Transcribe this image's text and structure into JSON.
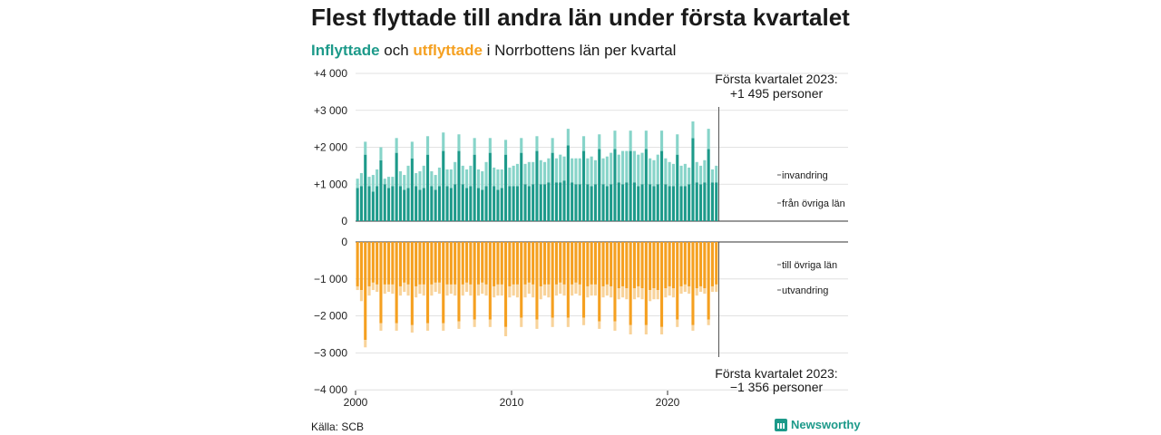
{
  "title": "Flest flyttade till andra län under första kvartalet",
  "subtitle": {
    "part1": "Inflyttade",
    "part2": " och ",
    "part3": "utflyttade",
    "part4": " i Norrbottens län per kvartal"
  },
  "source": "Källa: SCB",
  "brand": "Newsworthy",
  "colors": {
    "in_lan": "#1d9a8a",
    "in_inv": "#87d4c9",
    "out_lan": "#f5a020",
    "out_utv": "#f8d39a",
    "grid": "#d9d9d9",
    "axis": "#333333"
  },
  "chart_data": {
    "type": "bar",
    "stacked": true,
    "x": {
      "start": 2000,
      "period": "quarter",
      "n": 93,
      "ticks": [
        2000,
        2010,
        2020
      ],
      "tick_labels": [
        "2000",
        "2010",
        "2020"
      ]
    },
    "top_panel": {
      "ylim": [
        0,
        4000
      ],
      "ticks": [
        0,
        1000,
        2000,
        3000,
        4000
      ],
      "tick_labels": [
        "0",
        "+1 000",
        "+2 000",
        "+3 000",
        "+4 000"
      ],
      "series": [
        {
          "name": "från övriga län",
          "values": [
            900,
            950,
            1800,
            950,
            800,
            950,
            1650,
            1000,
            900,
            950,
            1850,
            950,
            850,
            900,
            1700,
            950,
            850,
            900,
            1800,
            950,
            850,
            950,
            1900,
            950,
            900,
            1000,
            1900,
            1000,
            900,
            950,
            1800,
            900,
            850,
            950,
            1850,
            950,
            850,
            900,
            1800,
            950,
            950,
            950,
            1850,
            1000,
            950,
            1000,
            1900,
            1000,
            1000,
            1050,
            1850,
            1050,
            1050,
            1100,
            2050,
            1050,
            1000,
            1000,
            1900,
            1000,
            950,
            1000,
            1950,
            1000,
            950,
            1000,
            1950,
            1050,
            1000,
            1050,
            1900,
            1050,
            950,
            1000,
            1950,
            1000,
            950,
            1000,
            1900,
            1000,
            950,
            950,
            1800,
            950,
            950,
            1000,
            2250,
            1050,
            1000,
            1050,
            1950,
            1050,
            1050
          ]
        },
        {
          "name": "invandring",
          "values": [
            250,
            350,
            350,
            250,
            450,
            450,
            350,
            150,
            300,
            250,
            400,
            400,
            400,
            600,
            450,
            350,
            500,
            600,
            500,
            400,
            400,
            500,
            500,
            450,
            500,
            600,
            450,
            500,
            500,
            550,
            450,
            500,
            500,
            650,
            400,
            500,
            550,
            500,
            400,
            500,
            550,
            600,
            400,
            550,
            650,
            600,
            400,
            650,
            600,
            650,
            400,
            650,
            750,
            650,
            450,
            650,
            700,
            700,
            400,
            700,
            800,
            650,
            400,
            700,
            800,
            850,
            500,
            750,
            900,
            850,
            550,
            850,
            850,
            850,
            500,
            700,
            700,
            800,
            550,
            700,
            650,
            600,
            550,
            550,
            600,
            450,
            450,
            550,
            500,
            600,
            550,
            350,
            450
          ]
        }
      ]
    },
    "bottom_panel": {
      "ylim": [
        -4000,
        0
      ],
      "ticks": [
        0,
        -1000,
        -2000,
        -3000,
        -4000
      ],
      "tick_labels": [
        "0",
        "−1 000",
        "−2 000",
        "−3 000",
        "−4 000"
      ],
      "series": [
        {
          "name": "till övriga län",
          "values": [
            -1200,
            -1300,
            -2650,
            -1200,
            -1100,
            -1150,
            -2200,
            -1150,
            -1150,
            -1150,
            -2200,
            -1200,
            -1100,
            -1150,
            -2250,
            -1200,
            -1150,
            -1150,
            -2200,
            -1150,
            -1100,
            -1100,
            -2200,
            -1150,
            -1150,
            -1150,
            -2150,
            -1150,
            -1100,
            -1150,
            -2100,
            -1150,
            -1100,
            -1150,
            -2100,
            -1200,
            -1150,
            -1150,
            -2300,
            -1200,
            -1150,
            -1150,
            -2050,
            -1150,
            -1100,
            -1150,
            -2100,
            -1200,
            -1150,
            -1150,
            -2050,
            -1150,
            -1100,
            -1150,
            -2050,
            -1150,
            -1100,
            -1150,
            -2050,
            -1200,
            -1150,
            -1150,
            -2150,
            -1200,
            -1150,
            -1200,
            -2150,
            -1250,
            -1200,
            -1250,
            -2250,
            -1250,
            -1200,
            -1250,
            -2250,
            -1300,
            -1250,
            -1300,
            -2300,
            -1250,
            -1200,
            -1250,
            -2100,
            -1200,
            -1150,
            -1200,
            -2250,
            -1250,
            -1200,
            -1250,
            -2100,
            -1200,
            -1150
          ]
        },
        {
          "name": "utvandring",
          "values": [
            -100,
            -300,
            -200,
            -250,
            -200,
            -200,
            -200,
            -250,
            -200,
            -250,
            -200,
            -250,
            -250,
            -300,
            -200,
            -300,
            -250,
            -300,
            -200,
            -300,
            -250,
            -300,
            -200,
            -300,
            -250,
            -300,
            -200,
            -300,
            -250,
            -300,
            -200,
            -300,
            -300,
            -300,
            -200,
            -300,
            -300,
            -300,
            -250,
            -300,
            -300,
            -350,
            -250,
            -350,
            -300,
            -350,
            -250,
            -350,
            -300,
            -350,
            -250,
            -300,
            -300,
            -300,
            -250,
            -300,
            -300,
            -300,
            -200,
            -300,
            -300,
            -300,
            -200,
            -300,
            -300,
            -300,
            -250,
            -300,
            -300,
            -300,
            -250,
            -300,
            -300,
            -300,
            -250,
            -300,
            -300,
            -250,
            -200,
            -250,
            -250,
            -250,
            -200,
            -200,
            -200,
            -200,
            -150,
            -200,
            -150,
            -150,
            -150,
            -150,
            -200
          ]
        }
      ]
    },
    "annotations": {
      "top": [
        "Första kvartalet 2023:",
        "+1 495 personer"
      ],
      "bottom": [
        "Första kvartalet 2023:",
        "−1 356 personer"
      ]
    }
  }
}
